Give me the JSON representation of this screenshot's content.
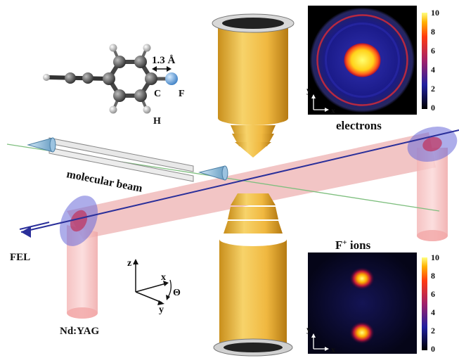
{
  "labels": {
    "bond_length": "1.3 Å",
    "atom_C": "C",
    "atom_F": "F",
    "atom_H": "H",
    "molecular_beam": "molecular beam",
    "fel": "FEL",
    "ndyag": "Nd:YAG",
    "electrons": "electrons",
    "ions_base": "F",
    "ions_sup": "+",
    "ions_rest": " ions"
  },
  "lab_axes": {
    "z": "z",
    "x": "x",
    "y": "y",
    "theta": "Θ"
  },
  "detector_axes": {
    "x": "x",
    "y": "y"
  },
  "colorbar": {
    "ticks": [
      "10",
      "8",
      "6",
      "4",
      "2",
      "0"
    ]
  },
  "colors": {
    "electrode": "#f2c14e",
    "laser_red": "#e98b8b",
    "fel_blue": "#2a2f9a",
    "beam_green": "#7fbf7f",
    "fluorine": "#6aa9e6"
  }
}
